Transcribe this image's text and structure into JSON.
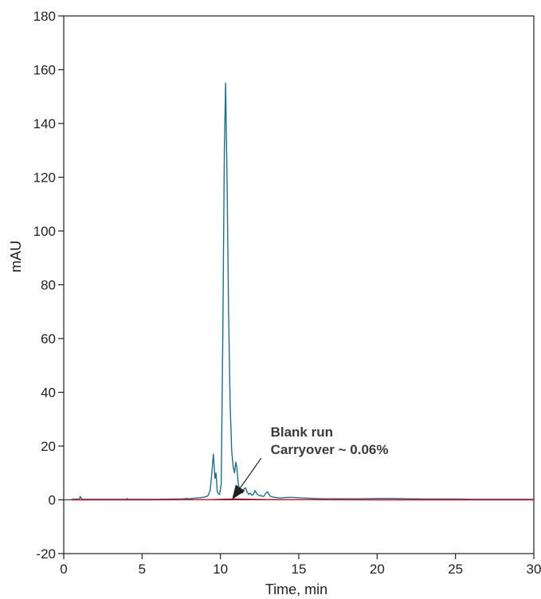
{
  "chart_data": {
    "type": "line",
    "xlabel": "Time, min",
    "ylabel": "mAU",
    "xlim": [
      0,
      30
    ],
    "ylim": [
      -20,
      180
    ],
    "xticks": [
      0,
      5,
      10,
      15,
      20,
      25,
      30
    ],
    "yticks": [
      -20,
      0,
      20,
      40,
      60,
      80,
      100,
      120,
      140,
      160,
      180
    ],
    "grid": false,
    "legend": "none",
    "series": [
      {
        "color": "#1f6f83",
        "x": [
          0.5,
          1.0,
          1.05,
          1.1,
          1.15,
          1.25,
          2.0,
          3.0,
          4.0,
          4.05,
          4.1,
          5.0,
          6.0,
          7.0,
          7.5,
          7.8,
          8.0,
          8.3,
          8.5,
          8.7,
          9.0,
          9.2,
          9.35,
          9.45,
          9.55,
          9.65,
          9.72,
          9.8,
          9.88,
          9.95,
          10.05,
          10.15,
          10.25,
          10.33,
          10.42,
          10.52,
          10.62,
          10.72,
          10.82,
          10.9,
          10.98,
          11.05,
          11.12,
          11.2,
          11.3,
          11.4,
          11.5,
          11.6,
          11.7,
          11.8,
          11.9,
          12.0,
          12.1,
          12.2,
          12.3,
          12.4,
          12.5,
          12.6,
          12.7,
          12.8,
          12.9,
          13.0,
          13.1,
          13.2,
          13.35,
          13.5,
          13.65,
          13.8,
          14.0,
          14.3,
          14.6,
          14.9,
          15.2,
          15.6,
          16.0,
          16.5,
          17.0,
          18.0,
          19.0,
          20.0,
          21.0,
          22.0,
          23.0,
          24.0,
          25.0,
          26.0,
          27.0,
          28.0,
          29.0,
          30.0
        ],
        "y": [
          0.2,
          0.3,
          1.2,
          0.8,
          0.3,
          0.2,
          0.2,
          0.2,
          0.2,
          0.5,
          0.2,
          0.2,
          0.2,
          0.3,
          0.3,
          0.5,
          0.4,
          0.6,
          0.7,
          0.8,
          1.0,
          1.5,
          3.5,
          10.0,
          17.0,
          8.0,
          10.0,
          3.0,
          2.2,
          2.0,
          6.0,
          60.0,
          130.0,
          155.0,
          120.0,
          70.0,
          35.0,
          18.0,
          12.0,
          10.0,
          14.0,
          12.0,
          7.0,
          4.0,
          3.0,
          2.5,
          4.0,
          4.5,
          3.0,
          2.0,
          2.5,
          1.7,
          2.0,
          3.5,
          2.5,
          1.8,
          1.5,
          1.6,
          1.2,
          1.5,
          2.5,
          3.0,
          2.0,
          1.3,
          1.0,
          0.9,
          0.8,
          0.7,
          0.8,
          0.9,
          0.9,
          0.8,
          0.7,
          0.6,
          0.5,
          0.4,
          0.4,
          0.4,
          0.4,
          0.5,
          0.5,
          0.4,
          0.3,
          0.3,
          0.3,
          0.2,
          0.2,
          0.2,
          0.2,
          0.2
        ]
      },
      {
        "color": "#c8102e",
        "x": [
          0.5,
          5.0,
          8.5,
          9.5,
          10.3,
          11.0,
          12.0,
          13.0,
          15.0,
          20.0,
          25.0,
          30.0
        ],
        "y": [
          0.0,
          0.0,
          0.05,
          0.1,
          0.25,
          0.3,
          0.2,
          0.1,
          0.05,
          0.0,
          0.0,
          0.0
        ]
      }
    ],
    "annotations": [
      {
        "text": "Blank run",
        "x": 13.2,
        "y": 23.5
      },
      {
        "text": "Carryover ~ 0.06%",
        "x": 13.2,
        "y": 17.0
      }
    ],
    "arrow": {
      "from": [
        12.6,
        15.5
      ],
      "to": [
        10.8,
        0.6
      ]
    }
  }
}
